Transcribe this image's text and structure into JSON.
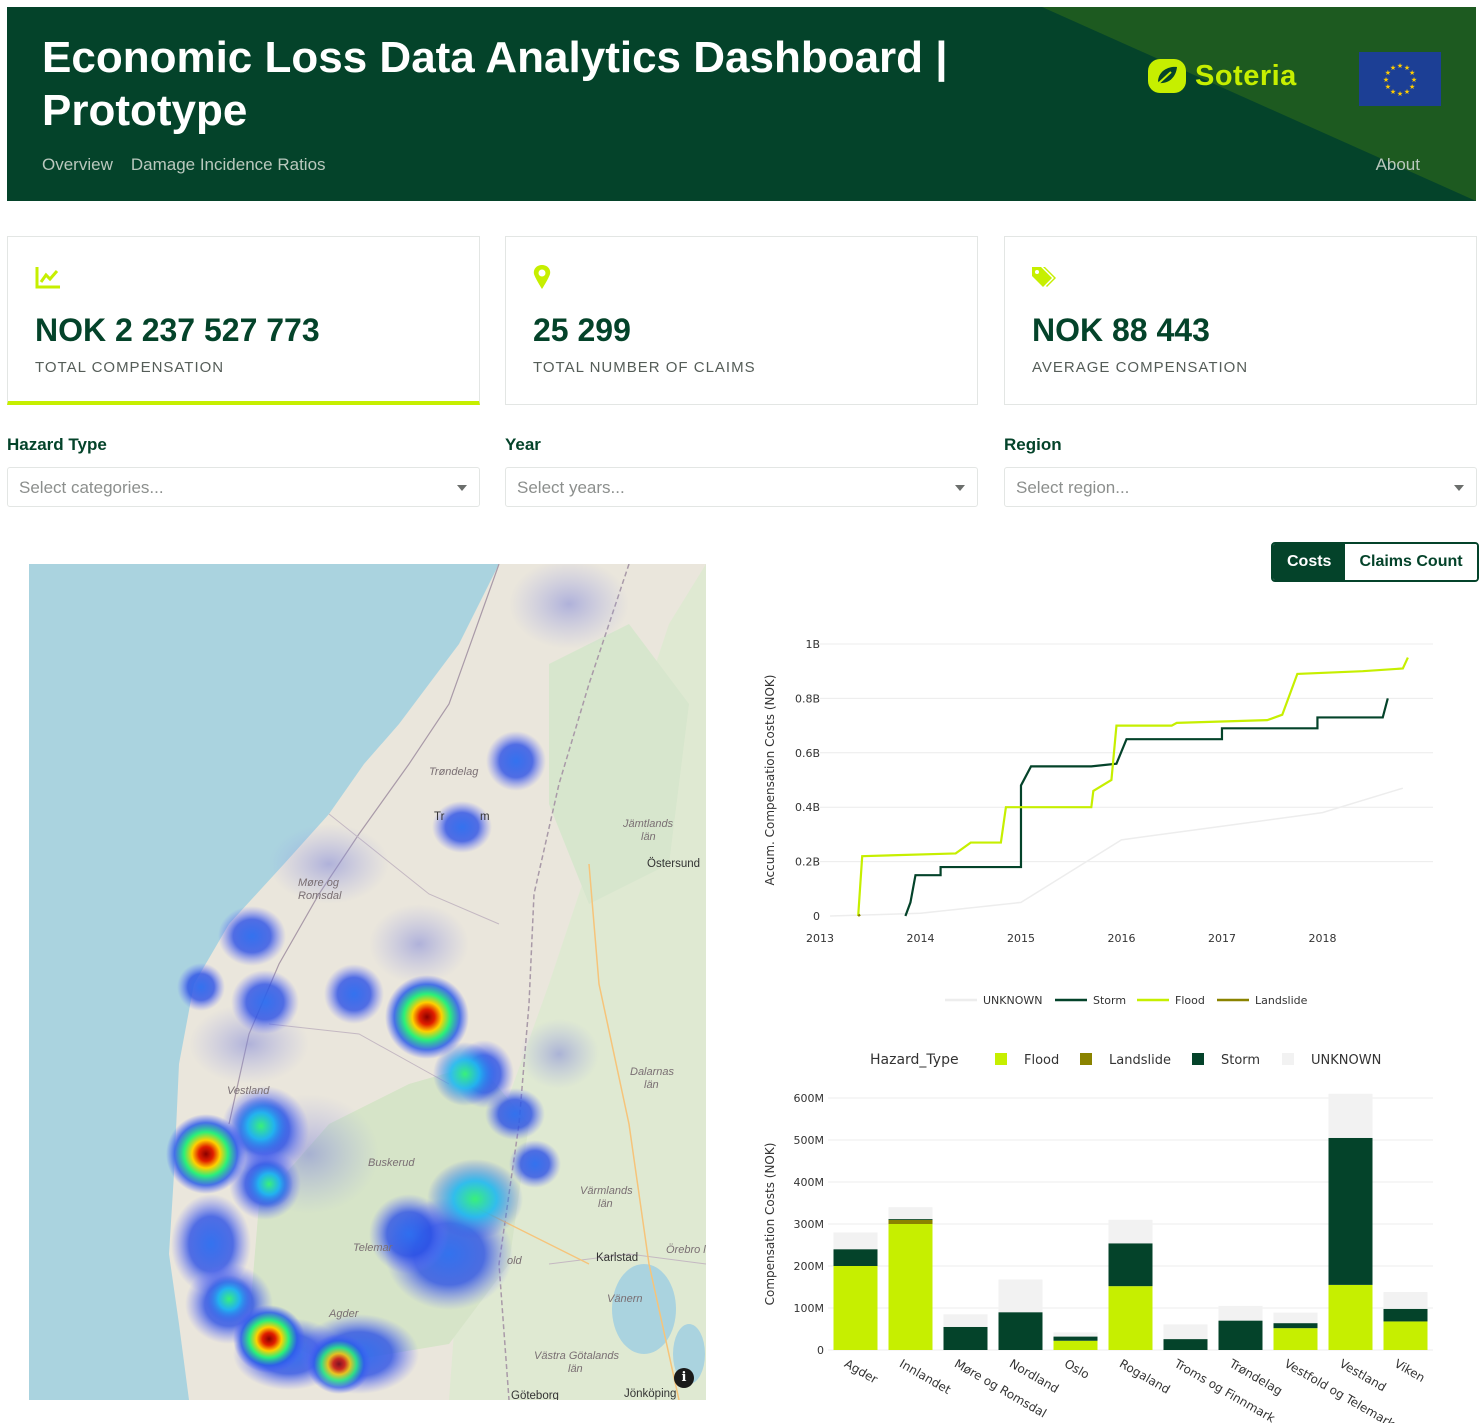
{
  "header": {
    "title": "Economic Loss Data Analytics Dashboard | Prototype",
    "nav": [
      "Overview",
      "Damage Incidence Ratios"
    ],
    "about": "About",
    "logo_text": "Soteria"
  },
  "kpis": [
    {
      "icon": "line-chart-icon",
      "value": "NOK 2 237 527 773",
      "label": "TOTAL COMPENSATION"
    },
    {
      "icon": "map-pin-icon",
      "value": "25 299",
      "label": "TOTAL NUMBER OF CLAIMS"
    },
    {
      "icon": "tags-icon",
      "value": "NOK 88 443",
      "label": "AVERAGE COMPENSATION"
    }
  ],
  "filters": [
    {
      "label": "Hazard Type",
      "placeholder": "Select categories..."
    },
    {
      "label": "Year",
      "placeholder": "Select years..."
    },
    {
      "label": "Region",
      "placeholder": "Select region..."
    }
  ],
  "map": {
    "labels": {
      "trondelag": "Trøndelag",
      "trondheim": "Tr",
      "trondheim_end": "m",
      "jamtlands": "Jämtlands",
      "jamtlands_lan": "län",
      "ostersund": "Östersund",
      "more": "Møre og",
      "romsdal": "Romsdal",
      "dalarnas": "Dalarnas",
      "dalarnas_lan": "län",
      "vestland": "Vestland",
      "buskerud": "Buskerud",
      "varmlands": "Värmlands",
      "varmlands_lan": "län",
      "telemark": "Telemar",
      "vestfold": "old",
      "karlstad": "Karlstad",
      "orebro": "Örebro l",
      "vanern": "Vänern",
      "agder": "Agder",
      "vastra": "Västra Götalands",
      "vastra_lan": "län",
      "goteborg": "Göteborg",
      "jonkoping": "Jönköping"
    },
    "info_label": "i"
  },
  "toggle": {
    "costs": "Costs",
    "claims": "Claims Count"
  },
  "chart_data": [
    {
      "type": "line",
      "title": "",
      "xlabel": "",
      "ylabel": "Accum. Compensation Costs (NOK)",
      "x_ticks": [
        "2013",
        "2014",
        "2015",
        "2016",
        "2017",
        "2018"
      ],
      "y_ticks": [
        "0",
        "0.2B",
        "0.4B",
        "0.6B",
        "0.8B",
        "1B"
      ],
      "ylim": [
        0,
        1000000000
      ],
      "xlim": [
        2013,
        2019.1
      ],
      "legend": {
        "placement": "bottom",
        "entries": [
          "UNKNOWN",
          "Storm",
          "Flood",
          "Landslide"
        ]
      },
      "series": [
        {
          "name": "UNKNOWN",
          "color": "#ededed",
          "points": [
            [
              2013.1,
              0.0
            ],
            [
              2014.0,
              0.01
            ],
            [
              2015.0,
              0.05
            ],
            [
              2016.0,
              0.28
            ],
            [
              2017.0,
              0.33
            ],
            [
              2018.0,
              0.38
            ],
            [
              2018.8,
              0.47
            ]
          ]
        },
        {
          "name": "Storm",
          "color": "#04432a",
          "points": [
            [
              2013.85,
              0.0
            ],
            [
              2013.9,
              0.05
            ],
            [
              2013.95,
              0.15
            ],
            [
              2014.2,
              0.15
            ],
            [
              2014.2,
              0.18
            ],
            [
              2015.0,
              0.18
            ],
            [
              2015.0,
              0.48
            ],
            [
              2015.1,
              0.55
            ],
            [
              2015.7,
              0.55
            ],
            [
              2015.95,
              0.56
            ],
            [
              2016.05,
              0.65
            ],
            [
              2017.0,
              0.65
            ],
            [
              2017.0,
              0.69
            ],
            [
              2017.95,
              0.69
            ],
            [
              2017.95,
              0.73
            ],
            [
              2018.6,
              0.73
            ],
            [
              2018.65,
              0.8
            ]
          ]
        },
        {
          "name": "Flood",
          "color": "#c6ef00",
          "points": [
            [
              2013.38,
              0.0
            ],
            [
              2013.42,
              0.22
            ],
            [
              2014.35,
              0.23
            ],
            [
              2014.5,
              0.27
            ],
            [
              2014.8,
              0.27
            ],
            [
              2014.85,
              0.4
            ],
            [
              2015.7,
              0.4
            ],
            [
              2015.72,
              0.46
            ],
            [
              2015.9,
              0.5
            ],
            [
              2015.95,
              0.7
            ],
            [
              2016.5,
              0.7
            ],
            [
              2016.55,
              0.71
            ],
            [
              2017.45,
              0.72
            ],
            [
              2017.6,
              0.74
            ],
            [
              2017.75,
              0.89
            ],
            [
              2018.4,
              0.9
            ],
            [
              2018.8,
              0.91
            ],
            [
              2018.85,
              0.95
            ]
          ]
        },
        {
          "name": "Landslide",
          "color": "#8a8300",
          "points": [
            [
              2013.38,
              0.0
            ],
            [
              2013.4,
              0.005
            ]
          ]
        }
      ]
    },
    {
      "type": "bar",
      "stacked": true,
      "title": "",
      "xlabel": "",
      "ylabel": "Compensation Costs (NOK)",
      "legend": {
        "title": "Hazard_Type",
        "placement": "top",
        "entries": [
          "Flood",
          "Landslide",
          "Storm",
          "UNKNOWN"
        ]
      },
      "y_ticks": [
        "0",
        "100M",
        "200M",
        "300M",
        "400M",
        "500M",
        "600M"
      ],
      "ylim": [
        0,
        600
      ],
      "unit": "M NOK",
      "categories": [
        "Agder",
        "Innlandet",
        "Møre og Romsdal",
        "Nordland",
        "Oslo",
        "Rogaland",
        "Troms og Finnmark",
        "Trøndelag",
        "Vestfold og Telemark",
        "Vestland",
        "Viken"
      ],
      "series": [
        {
          "name": "Flood",
          "color": "#c6ef00",
          "values": [
            200,
            300,
            0,
            0,
            22,
            152,
            0,
            0,
            52,
            155,
            68
          ]
        },
        {
          "name": "Landslide",
          "color": "#8a8300",
          "values": [
            0,
            10,
            0,
            0,
            0,
            0,
            0,
            0,
            0,
            0,
            0
          ]
        },
        {
          "name": "Storm",
          "color": "#04432a",
          "values": [
            40,
            2,
            55,
            90,
            10,
            102,
            26,
            70,
            12,
            350,
            30
          ]
        },
        {
          "name": "UNKNOWN",
          "color": "#f2f2f2",
          "values": [
            40,
            28,
            30,
            78,
            10,
            56,
            35,
            35,
            25,
            105,
            40
          ]
        }
      ]
    }
  ]
}
